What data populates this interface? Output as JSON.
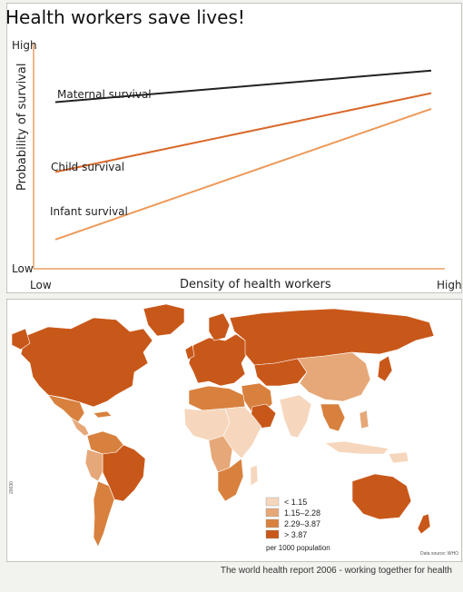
{
  "chart_data": {
    "type": "line",
    "title": "Health workers save lives!",
    "xlabel": "Density of health workers",
    "ylabel": "Probability of survival",
    "x_ticks": [
      "Low",
      "High"
    ],
    "y_ticks": [
      "Low",
      "High"
    ],
    "xlim": [
      0,
      100
    ],
    "ylim": [
      0,
      100
    ],
    "x": [
      0,
      100
    ],
    "series": [
      {
        "name": "Maternal survival",
        "values": [
          74,
          88
        ],
        "color": "#222222"
      },
      {
        "name": "Child survival",
        "values": [
          43,
          78
        ],
        "color": "#d9682a"
      },
      {
        "name": "Infant survival",
        "values": [
          13,
          71
        ],
        "color": "#ec9a5a"
      }
    ],
    "grid": false
  },
  "map": {
    "legend_title": "per 1000 population",
    "legend": [
      {
        "label": "< 1.15",
        "color": "#f6d7bd"
      },
      {
        "label": "1.15–2.28",
        "color": "#e6a878"
      },
      {
        "label": "2.29–3.87",
        "color": "#d8813e"
      },
      {
        "label": "> 3.87",
        "color": "#c8581a"
      }
    ],
    "source_note": "Data source: WHO",
    "edge_note": "20030"
  },
  "footer": {
    "caption": "The world health report 2006 - working together for health"
  },
  "colors": {
    "axis": "#f0b68a",
    "text": "#222222"
  }
}
